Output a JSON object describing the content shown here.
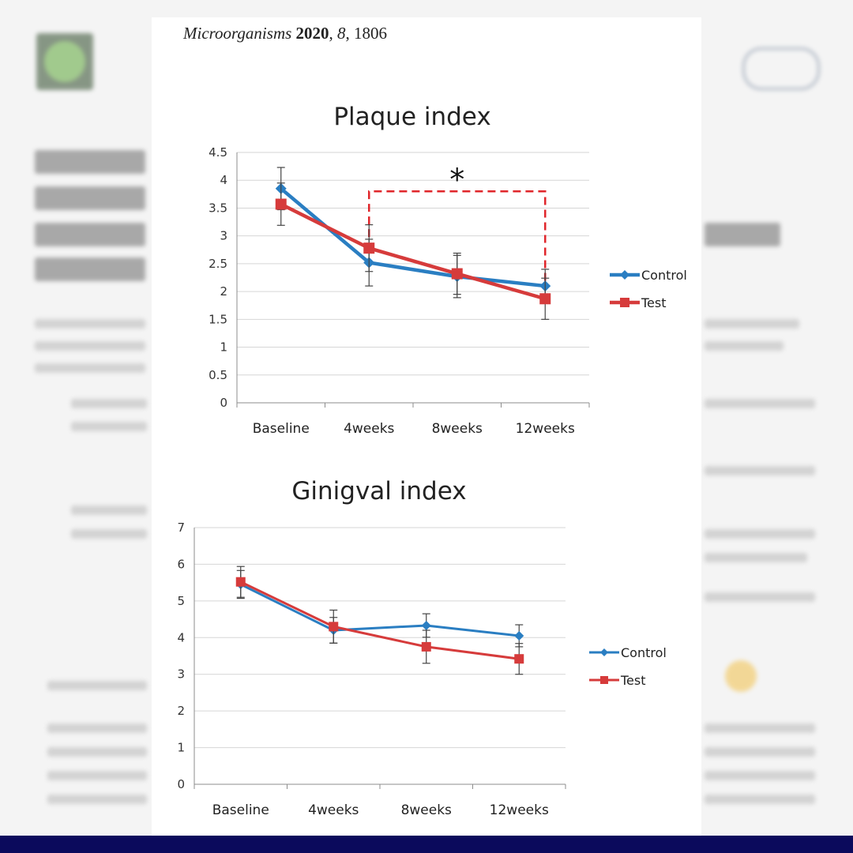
{
  "header": {
    "journal_name": "Microorganisms",
    "year": "2020",
    "volume": "8",
    "article_number": "1806"
  },
  "colors": {
    "control": "#2a7ec2",
    "test": "#d63b3b",
    "bracket": "#e0262b",
    "grid": "#d6d6d6",
    "axis": "#8c8c8c",
    "page_border": "#0b0a5c"
  },
  "chart_data": [
    {
      "type": "line",
      "title": "Plaque index",
      "categories": [
        "Baseline",
        "4weeks",
        "8weeks",
        "12weeks"
      ],
      "ylim": [
        0,
        4.5
      ],
      "yticks": [
        "0",
        "0.5",
        "1",
        "1.5",
        "2",
        "2.5",
        "3",
        "3.5",
        "4",
        "4.5"
      ],
      "grid": true,
      "legend": "right",
      "series": [
        {
          "name": "Control",
          "values": [
            3.85,
            2.52,
            2.27,
            2.1
          ],
          "error": [
            0.38,
            0.42,
            0.38,
            0.3
          ],
          "marker": "diamond",
          "color": "#2a7ec2"
        },
        {
          "name": "Test",
          "values": [
            3.57,
            2.78,
            2.32,
            1.87
          ],
          "error": [
            0.38,
            0.42,
            0.37,
            0.37
          ],
          "marker": "square",
          "color": "#d63b3b"
        }
      ],
      "annotation": {
        "text": "*",
        "from": "4weeks",
        "to": "12weeks",
        "y": 3.8,
        "style": "dashed-bracket"
      }
    },
    {
      "type": "line",
      "title": "Ginigval index",
      "categories": [
        "Baseline",
        "4weeks",
        "8weeks",
        "12weeks"
      ],
      "ylim": [
        0,
        7
      ],
      "yticks": [
        "0",
        "1",
        "2",
        "3",
        "4",
        "5",
        "6",
        "7"
      ],
      "grid": true,
      "legend": "right",
      "series": [
        {
          "name": "Control",
          "values": [
            5.45,
            4.2,
            4.33,
            4.05
          ],
          "error": [
            0.38,
            0.35,
            0.32,
            0.3
          ],
          "marker": "diamond",
          "color": "#2a7ec2"
        },
        {
          "name": "Test",
          "values": [
            5.52,
            4.3,
            3.75,
            3.42
          ],
          "error": [
            0.42,
            0.45,
            0.45,
            0.42
          ],
          "marker": "square",
          "color": "#d63b3b"
        }
      ]
    }
  ]
}
